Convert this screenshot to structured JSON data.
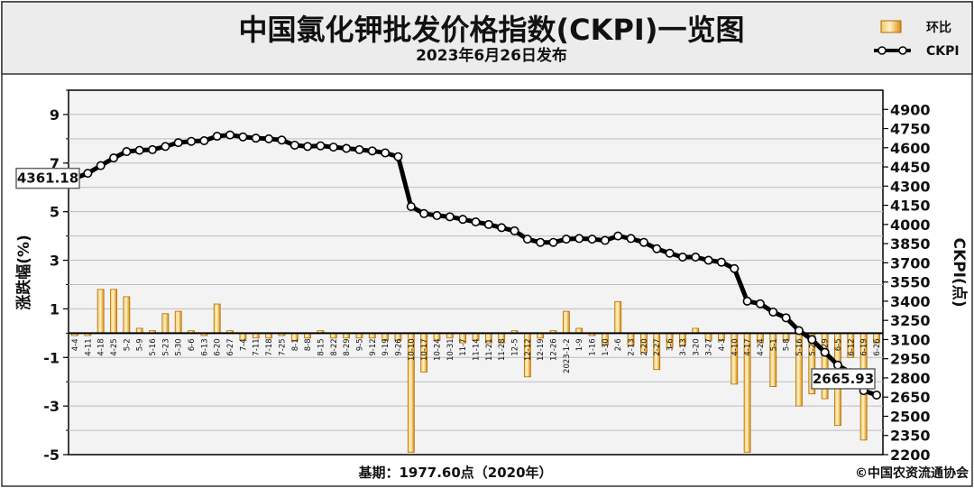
{
  "header": {
    "title": "中国氯化钾批发价格指数(CKPI)一览图",
    "subtitle": "2023年6月26日发布"
  },
  "legend": {
    "bar_label": "环比",
    "line_label": "CKPI"
  },
  "footer": {
    "base_note": "基期：1977.60点（2020年）",
    "copyright": "©中国农资流通协会"
  },
  "chart_data": {
    "type": "bar+line",
    "left_axis": {
      "label": "涨跌幅(%)",
      "ylim": [
        -5,
        10
      ],
      "ticks": [
        9,
        7,
        5,
        3,
        1,
        -1,
        -3,
        -5
      ]
    },
    "right_axis": {
      "label": "CKPI(点)",
      "ylim": [
        2200,
        5050
      ],
      "ticks": [
        4900,
        4750,
        4600,
        4450,
        4300,
        4150,
        4000,
        3850,
        3700,
        3550,
        3400,
        3250,
        3100,
        2950,
        2800,
        2650,
        2500,
        2350,
        2200
      ]
    },
    "categories": [
      "4-4",
      "4-11",
      "4-18",
      "4-25",
      "5-2",
      "5-9",
      "5-16",
      "5-23",
      "5-30",
      "6-6",
      "6-13",
      "6-20",
      "6-27",
      "7-4",
      "7-11",
      "7-18",
      "7-25",
      "8-1",
      "8-8",
      "8-15",
      "8-22",
      "8-29",
      "9-5",
      "9-12",
      "9-19",
      "9-26",
      "10-10",
      "10-17",
      "10-24",
      "10-31",
      "11-7",
      "11-14",
      "11-21",
      "11-28",
      "12-5",
      "12-12",
      "12-19",
      "12-26",
      "2023-1-2",
      "1-9",
      "1-16",
      "1-30",
      "2-6",
      "2-13",
      "2-20",
      "2-27",
      "3-6",
      "3-13",
      "3-20",
      "3-27",
      "4-3",
      "4-10",
      "4-17",
      "4-24",
      "5-1",
      "5-8",
      "5-16",
      "5-22",
      "5-29",
      "6-5",
      "6-12",
      "6-19",
      "6-26"
    ],
    "series": [
      {
        "name": "环比",
        "type": "bar",
        "axis": "left",
        "color": "#e8a020",
        "values": [
          -0.1,
          -0.1,
          1.8,
          1.8,
          1.5,
          0.2,
          0.1,
          0.8,
          0.9,
          0.1,
          -0.1,
          1.2,
          0.1,
          -0.3,
          -0.2,
          -0.2,
          -0.1,
          -0.3,
          -0.2,
          0.1,
          -0.2,
          -0.2,
          -0.2,
          -0.2,
          -0.3,
          -0.3,
          -4.9,
          -1.6,
          -0.3,
          -0.2,
          -0.4,
          -0.3,
          -0.4,
          -0.4,
          0.1,
          -1.8,
          -0.2,
          0.1,
          0.9,
          0.2,
          -0.1,
          -0.5,
          1.3,
          -0.5,
          -0.8,
          -1.5,
          -0.6,
          -0.5,
          0.2,
          -0.3,
          -0.3,
          -2.1,
          -4.9,
          -0.4,
          -2.2,
          -0.3,
          -3.0,
          -2.5,
          -2.7,
          -3.8,
          -1.0,
          -4.4,
          -0.4
        ]
      },
      {
        "name": "CKPI",
        "type": "line",
        "axis": "right",
        "color": "#000000",
        "values": [
          4361.18,
          4400,
          4460,
          4520,
          4570,
          4580,
          4585,
          4610,
          4640,
          4650,
          4655,
          4690,
          4700,
          4685,
          4675,
          4670,
          4660,
          4620,
          4610,
          4615,
          4605,
          4595,
          4585,
          4575,
          4560,
          4530,
          4140,
          4085,
          4070,
          4060,
          4040,
          4020,
          4000,
          3975,
          3950,
          3885,
          3860,
          3860,
          3885,
          3890,
          3885,
          3875,
          3910,
          3890,
          3860,
          3810,
          3775,
          3745,
          3745,
          3720,
          3705,
          3655,
          3400,
          3380,
          3315,
          3270,
          3170,
          3100,
          3000,
          2900,
          2840,
          2700,
          2665.93
        ]
      }
    ],
    "annotations": [
      {
        "label": "4361.18",
        "point": "first"
      },
      {
        "label": "2665.93",
        "point": "last"
      }
    ]
  }
}
